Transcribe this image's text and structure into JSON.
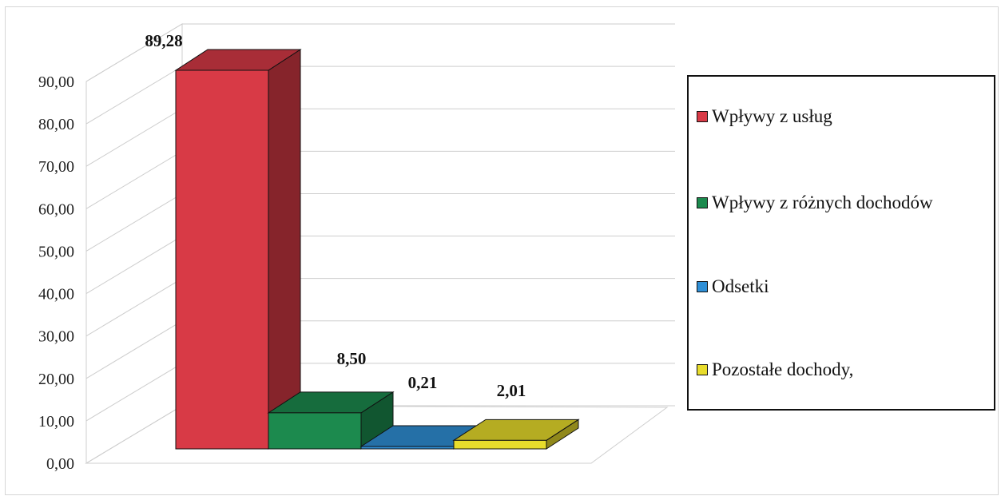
{
  "chart_data": {
    "type": "bar",
    "title": "",
    "xlabel": "",
    "ylabel": "",
    "ylim": [
      0,
      90
    ],
    "y_ticks": [
      "0,00",
      "10,00",
      "20,00",
      "30,00",
      "40,00",
      "50,00",
      "60,00",
      "70,00",
      "80,00",
      "90,00"
    ],
    "grid": true,
    "legend_position": "right",
    "categories": [
      "Wpływy z usług",
      "Wpływy z różnych dochodów",
      "Odsetki",
      "Pozostałe dochody,"
    ],
    "values": [
      89.28,
      8.5,
      0.21,
      2.01
    ],
    "data_labels": [
      "89,28",
      "8,50",
      "0,21",
      "2,01"
    ],
    "colors": [
      "#d83a46",
      "#1c8a4e",
      "#2f8fd6",
      "#e8dc2c"
    ]
  }
}
